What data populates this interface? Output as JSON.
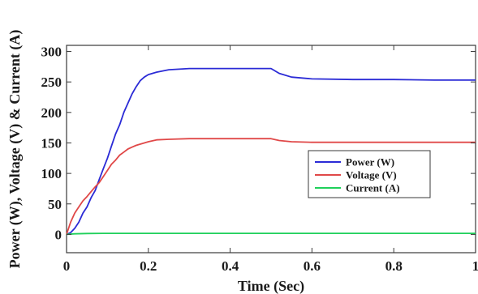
{
  "chart_data": {
    "type": "line",
    "title": "",
    "xlabel": "Time (Sec)",
    "ylabel": "Power (W), Voltage (V) & Current (A)",
    "xlim": [
      0,
      1
    ],
    "ylim": [
      -30,
      310
    ],
    "xticks": [
      0,
      0.2,
      0.4,
      0.6,
      0.8,
      1
    ],
    "xtick_labels": [
      "0",
      "0.2",
      "0.4",
      "0.6",
      "0.8",
      "1"
    ],
    "yticks": [
      0,
      50,
      100,
      150,
      200,
      250,
      300
    ],
    "ytick_labels": [
      "0",
      "50",
      "100",
      "150",
      "200",
      "250",
      "300"
    ],
    "grid": false,
    "legend_position": "center-right",
    "series": [
      {
        "name": "Power (W)",
        "color": "#2b2bd6",
        "x": [
          0,
          0.01,
          0.02,
          0.03,
          0.04,
          0.05,
          0.06,
          0.07,
          0.08,
          0.09,
          0.1,
          0.11,
          0.12,
          0.13,
          0.14,
          0.15,
          0.16,
          0.17,
          0.18,
          0.19,
          0.2,
          0.22,
          0.25,
          0.3,
          0.35,
          0.4,
          0.45,
          0.5,
          0.52,
          0.55,
          0.6,
          0.7,
          0.8,
          0.9,
          1.0
        ],
        "y": [
          0,
          3,
          10,
          20,
          35,
          45,
          60,
          72,
          90,
          108,
          125,
          145,
          165,
          180,
          200,
          215,
          230,
          242,
          252,
          258,
          262,
          266,
          270,
          272,
          272,
          272,
          272,
          272,
          264,
          258,
          255,
          254,
          254,
          253,
          253
        ]
      },
      {
        "name": "Voltage (V)",
        "color": "#e04848",
        "x": [
          0,
          0.01,
          0.02,
          0.03,
          0.04,
          0.05,
          0.06,
          0.07,
          0.08,
          0.09,
          0.1,
          0.11,
          0.12,
          0.13,
          0.14,
          0.15,
          0.16,
          0.17,
          0.18,
          0.19,
          0.2,
          0.22,
          0.25,
          0.3,
          0.4,
          0.5,
          0.52,
          0.55,
          0.6,
          0.8,
          1.0
        ],
        "y": [
          0,
          20,
          35,
          45,
          55,
          62,
          70,
          78,
          85,
          95,
          105,
          115,
          122,
          130,
          135,
          140,
          143,
          146,
          148,
          150,
          152,
          155,
          156,
          157,
          157,
          157,
          154,
          152,
          151,
          151,
          151
        ]
      },
      {
        "name": "Current (A)",
        "color": "#1fd05a",
        "x": [
          0,
          0.02,
          0.05,
          0.1,
          0.2,
          0.5,
          1.0
        ],
        "y": [
          0,
          1,
          1.5,
          1.7,
          1.8,
          1.8,
          1.8
        ]
      }
    ]
  }
}
